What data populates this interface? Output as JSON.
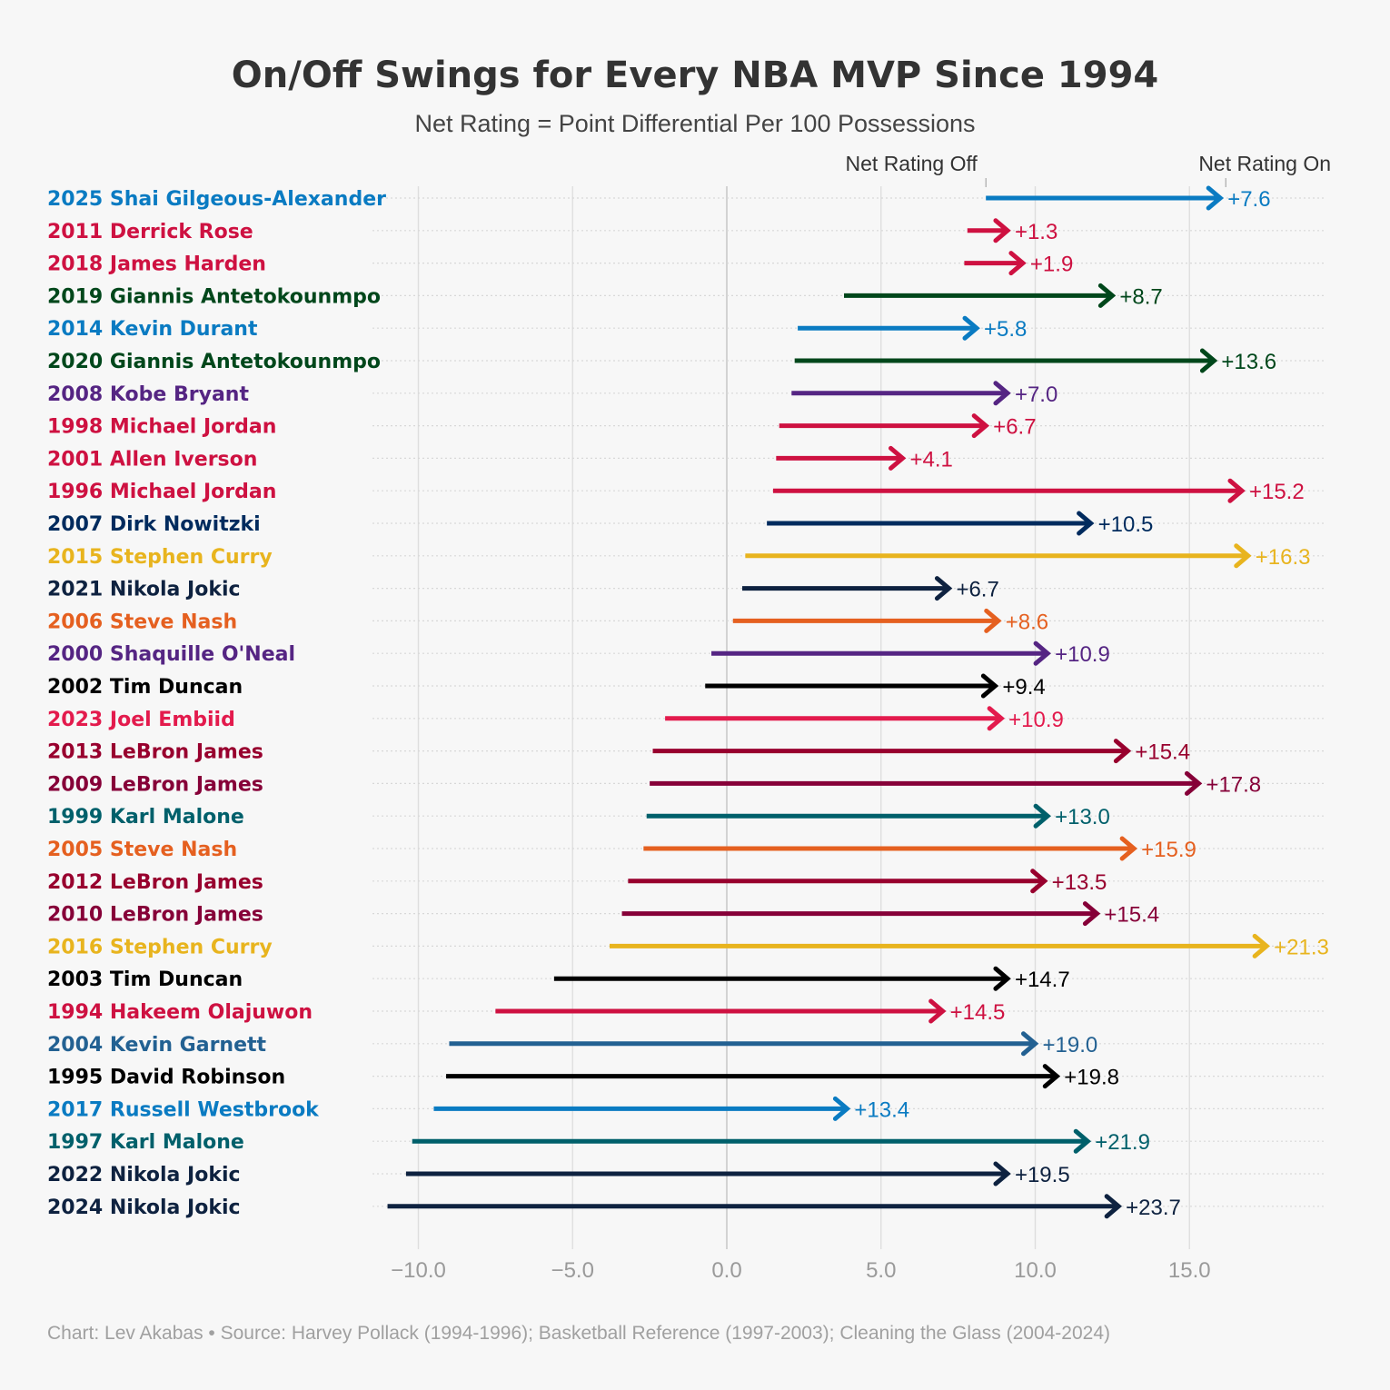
{
  "chart_data": {
    "type": "arrow",
    "title": "On/Off Swings for Every NBA MVP Since 1994",
    "subtitle": "Net Rating = Point Differential Per 100 Possessions",
    "legend": {
      "start_label": "Net Rating Off",
      "end_label": "Net Rating On"
    },
    "caption": "Chart: Lev Akabas • Source: Harvey Pollack (1994-1996); Basketball Reference (1997-2003); Cleaning the Glass (2004-2024)",
    "x_ticks": [
      -10,
      -5,
      0,
      5,
      10,
      15
    ],
    "x_tick_labels": [
      "−10.0",
      "−5.0",
      "0.0",
      "5.0",
      "10.0",
      "15.0"
    ],
    "xlim": [
      -11.5,
      19.5
    ],
    "rows": [
      {
        "label": "2025 Shai Gilgeous-Alexander",
        "off": 8.4,
        "on": 16.0,
        "swing": "+7.6",
        "color": "#0a7bc2"
      },
      {
        "label": "2011 Derrick Rose",
        "off": 7.8,
        "on": 9.1,
        "swing": "+1.3",
        "color": "#ce1141"
      },
      {
        "label": "2018 James Harden",
        "off": 7.7,
        "on": 9.6,
        "swing": "+1.9",
        "color": "#ce1141"
      },
      {
        "label": "2019 Giannis Antetokounmpo",
        "off": 3.8,
        "on": 12.5,
        "swing": "+8.7",
        "color": "#00471b"
      },
      {
        "label": "2014 Kevin Durant",
        "off": 2.3,
        "on": 8.1,
        "swing": "+5.8",
        "color": "#0a7bc2"
      },
      {
        "label": "2020 Giannis Antetokounmpo",
        "off": 2.2,
        "on": 15.8,
        "swing": "+13.6",
        "color": "#00471b"
      },
      {
        "label": "2008 Kobe Bryant",
        "off": 2.1,
        "on": 9.1,
        "swing": "+7.0",
        "color": "#552583"
      },
      {
        "label": "1998 Michael Jordan",
        "off": 1.7,
        "on": 8.4,
        "swing": "+6.7",
        "color": "#ce1141"
      },
      {
        "label": "2001 Allen Iverson",
        "off": 1.6,
        "on": 5.7,
        "swing": "+4.1",
        "color": "#ce1141"
      },
      {
        "label": "1996 Michael Jordan",
        "off": 1.5,
        "on": 16.7,
        "swing": "+15.2",
        "color": "#ce1141"
      },
      {
        "label": "2007 Dirk Nowitzki",
        "off": 1.3,
        "on": 11.8,
        "swing": "+10.5",
        "color": "#002b5e"
      },
      {
        "label": "2015 Stephen Curry",
        "off": 0.6,
        "on": 16.9,
        "swing": "+16.3",
        "color": "#e8b41e"
      },
      {
        "label": "2021 Nikola Jokic",
        "off": 0.5,
        "on": 7.2,
        "swing": "+6.7",
        "color": "#0e2240"
      },
      {
        "label": "2006 Steve Nash",
        "off": 0.2,
        "on": 8.8,
        "swing": "+8.6",
        "color": "#e56020"
      },
      {
        "label": "2000 Shaquille O'Neal",
        "off": -0.5,
        "on": 10.4,
        "swing": "+10.9",
        "color": "#552583"
      },
      {
        "label": "2002 Tim Duncan",
        "off": -0.7,
        "on": 8.7,
        "swing": "+9.4",
        "color": "#000000"
      },
      {
        "label": "2023 Joel Embiid",
        "off": -2.0,
        "on": 8.9,
        "swing": "+10.9",
        "color": "#e31b4d"
      },
      {
        "label": "2013 LeBron James",
        "off": -2.4,
        "on": 13.0,
        "swing": "+15.4",
        "color": "#98002e"
      },
      {
        "label": "2009 LeBron James",
        "off": -2.5,
        "on": 15.3,
        "swing": "+17.8",
        "color": "#860038"
      },
      {
        "label": "1999 Karl Malone",
        "off": -2.6,
        "on": 10.4,
        "swing": "+13.0",
        "color": "#00606b"
      },
      {
        "label": "2005 Steve Nash",
        "off": -2.7,
        "on": 13.2,
        "swing": "+15.9",
        "color": "#e56020"
      },
      {
        "label": "2012 LeBron James",
        "off": -3.2,
        "on": 10.3,
        "swing": "+13.5",
        "color": "#98002e"
      },
      {
        "label": "2010 LeBron James",
        "off": -3.4,
        "on": 12.0,
        "swing": "+15.4",
        "color": "#860038"
      },
      {
        "label": "2016 Stephen Curry",
        "off": -3.8,
        "on": 17.5,
        "swing": "+21.3",
        "color": "#e8b41e"
      },
      {
        "label": "2003 Tim Duncan",
        "off": -5.6,
        "on": 9.1,
        "swing": "+14.7",
        "color": "#000000"
      },
      {
        "label": "1994 Hakeem Olajuwon",
        "off": -7.5,
        "on": 7.0,
        "swing": "+14.5",
        "color": "#ce1141"
      },
      {
        "label": "2004 Kevin Garnett",
        "off": -9.0,
        "on": 10.0,
        "swing": "+19.0",
        "color": "#236192"
      },
      {
        "label": "1995 David Robinson",
        "off": -9.1,
        "on": 10.7,
        "swing": "+19.8",
        "color": "#000000"
      },
      {
        "label": "2017 Russell Westbrook",
        "off": -9.5,
        "on": 3.9,
        "swing": "+13.4",
        "color": "#0a7bc2"
      },
      {
        "label": "1997 Karl Malone",
        "off": -10.2,
        "on": 11.7,
        "swing": "+21.9",
        "color": "#00606b"
      },
      {
        "label": "2022 Nikola Jokic",
        "off": -10.4,
        "on": 9.1,
        "swing": "+19.5",
        "color": "#0e2240"
      },
      {
        "label": "2024 Nikola Jokic",
        "off": -11.0,
        "on": 12.7,
        "swing": "+23.7",
        "color": "#0e2240"
      }
    ]
  }
}
